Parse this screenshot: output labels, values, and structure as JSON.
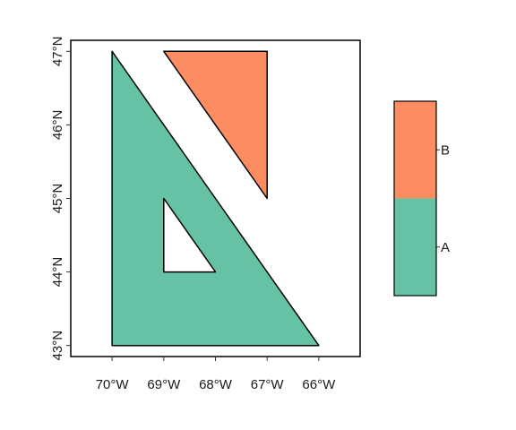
{
  "chart_data": {
    "type": "map",
    "xlim": [
      -70.8,
      -65.2
    ],
    "ylim": [
      42.85,
      47.15
    ],
    "x_ticks": [
      -70,
      -69,
      -68,
      -67,
      -66
    ],
    "x_tick_labels": [
      "70°W",
      "69°W",
      "68°W",
      "67°W",
      "66°W"
    ],
    "y_ticks": [
      43,
      44,
      45,
      46,
      47
    ],
    "y_tick_labels": [
      "43°N",
      "44°N",
      "45°N",
      "46°N",
      "47°N"
    ],
    "grid": false,
    "legend_position": "right",
    "series": [
      {
        "name": "A",
        "color": "#66c2a5",
        "exterior": [
          [
            -70,
            47
          ],
          [
            -66,
            43
          ],
          [
            -70,
            43
          ]
        ],
        "hole": [
          [
            -69,
            45
          ],
          [
            -68,
            44
          ],
          [
            -69,
            44
          ]
        ]
      },
      {
        "name": "B",
        "color": "#fc8d62",
        "exterior": [
          [
            -69,
            47
          ],
          [
            -67,
            47
          ],
          [
            -67,
            45
          ]
        ]
      }
    ]
  }
}
